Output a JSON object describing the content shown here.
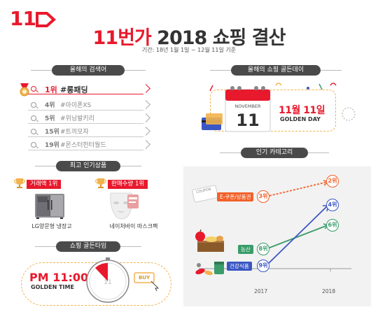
{
  "logo": "11",
  "header": {
    "title_accent": "11번가",
    "title_rest": "2018 쇼핑 결산",
    "period": "기간: 18년 1월 1일 ~ 12월 11일 기준"
  },
  "keywords": {
    "heading": "올해의 검색어",
    "items": [
      {
        "rank": "1위",
        "term": "#롱패딩"
      },
      {
        "rank": "4위",
        "term": "#아이폰XS"
      },
      {
        "rank": "5위",
        "term": "#위닝발키리"
      },
      {
        "rank": "15위",
        "term": "#트끼모자"
      },
      {
        "rank": "19위",
        "term": "#몬스터헌터월드"
      }
    ]
  },
  "products": {
    "heading": "최고 인기상품",
    "revenue_tag": "거래액 1위",
    "volume_tag": "판매수량 1위",
    "revenue_item": "LG양문형 냉장고",
    "volume_item": "네이처바이 마스크팩"
  },
  "golden_time": {
    "heading": "쇼핑 골든타임",
    "time": "PM 11:00",
    "label": "GOLDEN TIME",
    "buy": "BUY"
  },
  "golden_day": {
    "heading": "올해의 쇼핑 골든데이",
    "month": "NOVEMBER",
    "day": "11",
    "date": "11월 11일",
    "label": "GOLDEN DAY"
  },
  "categories": {
    "heading": "인기 카테고리",
    "coupon": "COUPON",
    "x_labels": [
      "2017",
      "2018"
    ],
    "series": [
      {
        "name": "E-쿠폰/상품권",
        "rank_2017": "3위",
        "rank_2018": "2위",
        "color": "#f2612a"
      },
      {
        "name": "농산",
        "rank_2017": "8위",
        "rank_2018": "6위",
        "color": "#3a9c6a"
      },
      {
        "name": "건강식품",
        "rank_2017": "9위",
        "rank_2018": "4위",
        "color": "#3b57c4"
      }
    ]
  },
  "colors": {
    "brand": "#e8192c",
    "accent": "#f2b24c"
  }
}
